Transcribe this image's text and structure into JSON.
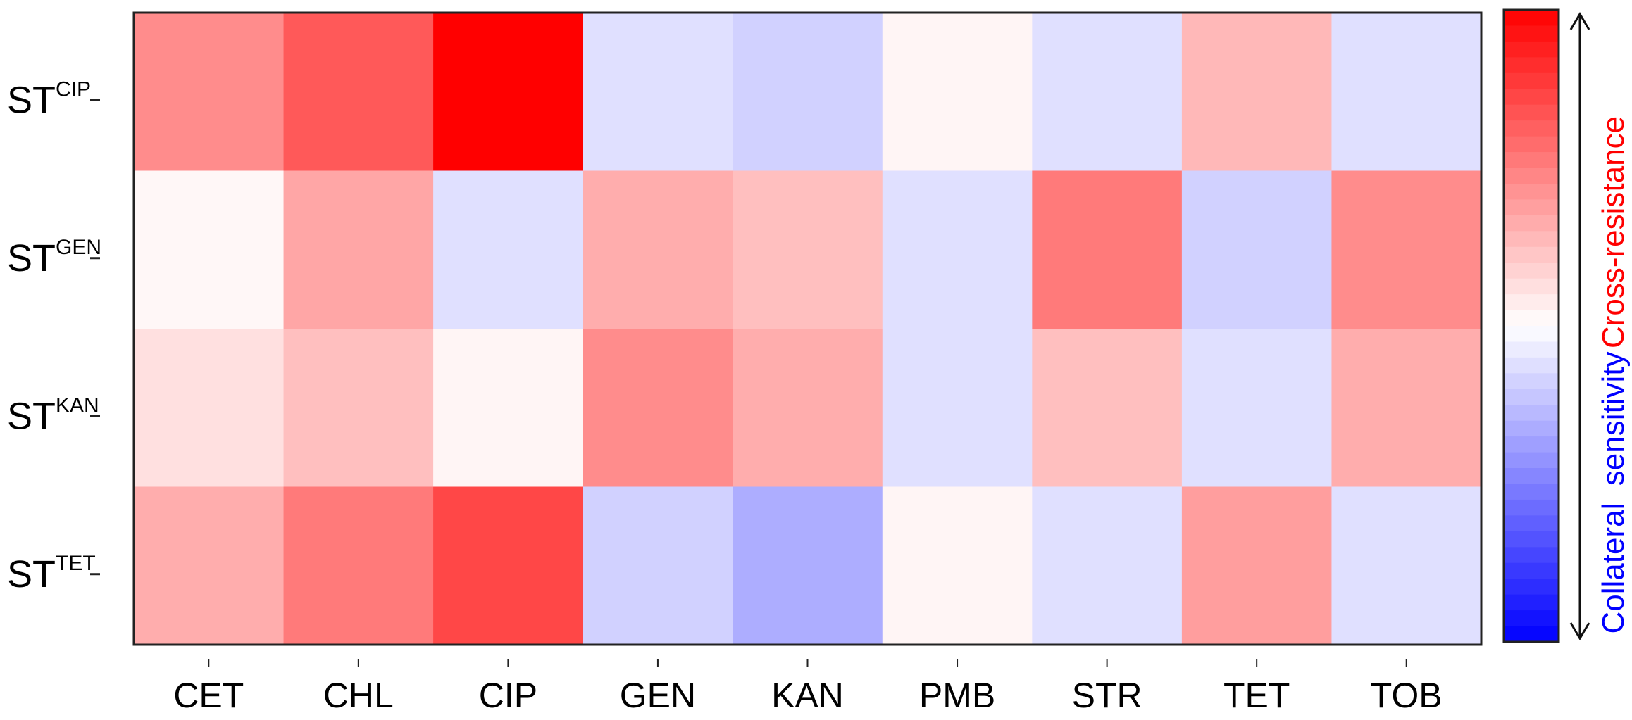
{
  "chart_data": {
    "type": "heatmap",
    "title": "",
    "xlabel": "",
    "ylabel": "",
    "columns": [
      "CET",
      "CHL",
      "CIP",
      "GEN",
      "KAN",
      "PMB",
      "STR",
      "TET",
      "TOB"
    ],
    "rows": [
      {
        "base": "ST",
        "sup": "CIP"
      },
      {
        "base": "ST",
        "sup": "GEN"
      },
      {
        "base": "ST",
        "sup": "KAN"
      },
      {
        "base": "ST",
        "sup": "TET"
      }
    ],
    "values": [
      [
        0.45,
        0.65,
        1.0,
        -0.12,
        -0.18,
        0.04,
        -0.12,
        0.28,
        -0.12
      ],
      [
        0.03,
        0.35,
        -0.12,
        0.32,
        0.25,
        -0.12,
        0.52,
        -0.18,
        0.45
      ],
      [
        0.12,
        0.25,
        0.04,
        0.45,
        0.32,
        -0.12,
        0.25,
        -0.12,
        0.32
      ],
      [
        0.32,
        0.52,
        0.72,
        -0.18,
        -0.32,
        0.04,
        -0.12,
        0.38,
        -0.12
      ]
    ],
    "value_range": [
      -1,
      1
    ],
    "colorbar": {
      "low_color": "#0000ff",
      "mid_color": "#ffffff",
      "high_color": "#ff0000",
      "top_label": "Cross-resistance",
      "top_label_color": "#ff0000",
      "bottom_label": "Collateral  sensitivity",
      "bottom_label_color": "#0000ff"
    }
  }
}
